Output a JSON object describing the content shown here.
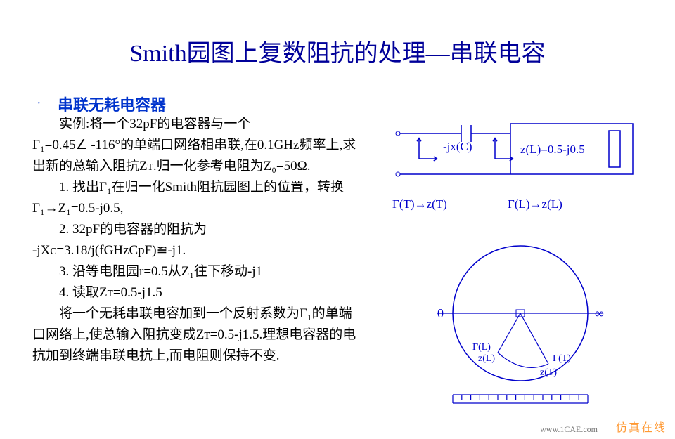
{
  "title": "Smith园图上复数阻抗的处理—串联电容",
  "bullet": "·",
  "subtitle": "串联无耗电容器",
  "paragraphs": {
    "p1a": "实例:将一个32pF的电容器与一个",
    "p1b": "Γ₁=0.45∠ -116°的单端口网络相串联,在0.1GHᴢ频率上,求出新的总输入阻抗Zᴛ.归一化参考电阻为Z₀=50Ω.",
    "p2a": "1. 找出Γ₁在归一化Smith阻抗园图上的位置，转换Γ₁→Z₁=0.5-j0.5,",
    "p3a": "2. 32pF的电容器的阻抗为",
    "p3b": "-jXᴄ=3.18/j(fGHᴢCpF)≌-j1.",
    "p4a": "3. 沿等电阻园r=0.5从Z₁往下移动-j1",
    "p5a": "4. 读取Zᴛ=0.5-j1.5",
    "p6a": "将一个无耗串联电容加到一个反射系数为Γ₁的单端口网络上,使总输入阻抗变成Zᴛ=0.5-j1.5.理想电容器的电抗加到终端串联电抗上,而电阻则保持不变."
  },
  "circuit": {
    "cap_label": "-jx(C)",
    "load_label": "z(L)=0.5-j0.5",
    "gt_label": "Γ(T)→z(T)",
    "gl_label": "Γ(L)→z(L)",
    "stroke": "#0000cc",
    "stroke_width": 1.5
  },
  "smith": {
    "left_label": "0",
    "right_label": "∞",
    "gl": "Γ(L)",
    "zl": "z(L)",
    "gt": "Γ(T)",
    "zt": "z(T)",
    "stroke": "#0000cc",
    "circle_r": 96,
    "tick_count": 15
  },
  "brand": "仿真在线",
  "watermark": "www.1CAE.com"
}
